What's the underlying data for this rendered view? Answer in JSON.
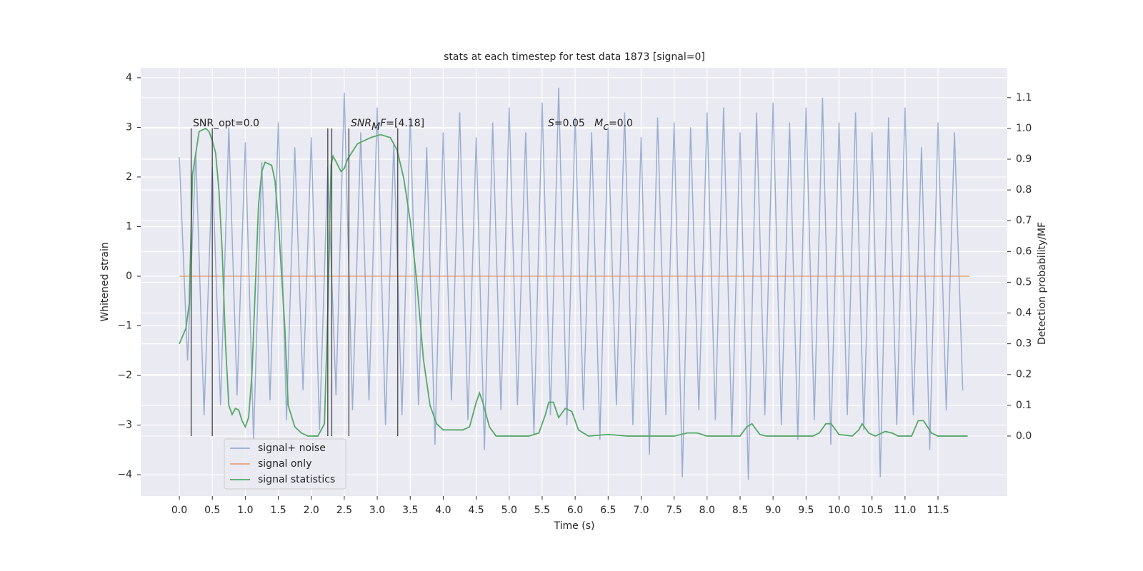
{
  "chart_data": {
    "type": "line",
    "title": "stats at each timestep for test data 1873 [signal=0]",
    "xlabel": "Time (s)",
    "ylabel": "Whitened strain",
    "y2label": "Detection probability/MF",
    "xlim": [
      -0.585,
      12.55
    ],
    "ylim": [
      -4.43,
      4.2
    ],
    "y2lim": [
      -0.195,
      1.197
    ],
    "grid": true,
    "legend_loc": "lower left",
    "xticks": [
      {
        "value": 0,
        "label": "0.0"
      },
      {
        "value": 0.5,
        "label": "0.5"
      },
      {
        "value": 1,
        "label": "1.0"
      },
      {
        "value": 1.5,
        "label": "1.5"
      },
      {
        "value": 2,
        "label": "2.0"
      },
      {
        "value": 2.5,
        "label": "2.5"
      },
      {
        "value": 3,
        "label": "3.0"
      },
      {
        "value": 3.5,
        "label": "3.5"
      },
      {
        "value": 4,
        "label": "4.0"
      },
      {
        "value": 4.5,
        "label": "4.5"
      },
      {
        "value": 5,
        "label": "5.0"
      },
      {
        "value": 5.5,
        "label": "5.5"
      },
      {
        "value": 6,
        "label": "6.0"
      },
      {
        "value": 6.5,
        "label": "6.5"
      },
      {
        "value": 7,
        "label": "7.0"
      },
      {
        "value": 7.5,
        "label": "7.5"
      },
      {
        "value": 8,
        "label": "8.0"
      },
      {
        "value": 8.5,
        "label": "8.5"
      },
      {
        "value": 9,
        "label": "9.0"
      },
      {
        "value": 9.5,
        "label": "9.5"
      },
      {
        "value": 10,
        "label": "10.0"
      },
      {
        "value": 10.5,
        "label": "10.5"
      },
      {
        "value": 11,
        "label": "11.0"
      },
      {
        "value": 11.5,
        "label": "11.5"
      }
    ],
    "yticks": [
      {
        "value": -4,
        "label": "−4"
      },
      {
        "value": -3,
        "label": "−3"
      },
      {
        "value": -2,
        "label": "−2"
      },
      {
        "value": -1,
        "label": "−1"
      },
      0,
      1,
      2,
      3,
      4
    ],
    "y2ticks": [
      {
        "value": 0,
        "label": "0.0"
      },
      {
        "value": 0.1,
        "label": "0.1"
      },
      {
        "value": 0.2,
        "label": "0.2"
      },
      {
        "value": 0.3,
        "label": "0.3"
      },
      {
        "value": 0.4,
        "label": "0.4"
      },
      {
        "value": 0.5,
        "label": "0.5"
      },
      {
        "value": 0.6,
        "label": "0.6"
      },
      {
        "value": 0.7,
        "label": "0.7"
      },
      {
        "value": 0.8,
        "label": "0.8"
      },
      {
        "value": 0.9,
        "label": "0.9"
      },
      {
        "value": 1,
        "label": "1.0"
      },
      {
        "value": 1.1,
        "label": "1.1"
      }
    ],
    "series": [
      {
        "name": "signal+ noise",
        "color": "#4c72b0",
        "opacity": 0.5,
        "x": [
          0,
          0.125,
          0.25,
          0.375,
          0.5,
          0.625,
          0.75,
          0.875,
          1,
          1.125,
          1.25,
          1.375,
          1.5,
          1.625,
          1.75,
          1.875,
          2,
          2.125,
          2.25,
          2.375,
          2.5,
          2.625,
          2.75,
          2.875,
          3,
          3.125,
          3.25,
          3.375,
          3.5,
          3.625,
          3.75,
          3.875,
          4,
          4.125,
          4.25,
          4.375,
          4.5,
          4.625,
          4.75,
          4.875,
          5,
          5.125,
          5.25,
          5.375,
          5.5,
          5.625,
          5.75,
          5.875,
          6,
          6.125,
          6.25,
          6.375,
          6.5,
          6.625,
          6.75,
          6.875,
          7,
          7.125,
          7.25,
          7.375,
          7.5,
          7.625,
          7.75,
          7.875,
          8,
          8.125,
          8.25,
          8.375,
          8.5,
          8.625,
          8.75,
          8.875,
          9,
          9.125,
          9.25,
          9.375,
          9.5,
          9.625,
          9.75,
          9.875,
          10,
          10.125,
          10.25,
          10.375,
          10.5,
          10.625,
          10.75,
          10.875,
          11,
          11.125,
          11.25,
          11.375,
          11.5,
          11.625,
          11.75,
          11.875
        ],
        "values": [
          2.4,
          -1.7,
          2.5,
          -2.8,
          2.2,
          -2.6,
          3.0,
          -2.4,
          2.7,
          -3.3,
          2.3,
          -2.5,
          3.1,
          -2.9,
          2.6,
          -2.3,
          2.8,
          -3.1,
          2.2,
          -2.4,
          3.7,
          -2.7,
          2.9,
          -2.5,
          3.4,
          -3.0,
          2.7,
          -2.8,
          3.2,
          -2.6,
          2.6,
          -3.4,
          2.9,
          -2.5,
          3.3,
          -2.9,
          2.8,
          -3.5,
          3.1,
          -2.7,
          3.4,
          -2.6,
          2.9,
          -3.2,
          3.5,
          -2.8,
          3.8,
          -3.0,
          3.2,
          -2.7,
          2.9,
          -3.3,
          3.0,
          -2.6,
          3.3,
          -3.0,
          2.8,
          -3.6,
          3.2,
          -2.8,
          3.1,
          -4.05,
          3.0,
          -2.7,
          3.3,
          -2.9,
          3.4,
          -3.2,
          2.9,
          -4.1,
          3.3,
          -2.8,
          3.5,
          -3.0,
          3.1,
          -3.3,
          3.4,
          -2.9,
          3.6,
          -3.4,
          3.1,
          -2.8,
          3.3,
          -3.1,
          2.9,
          -4.05,
          3.2,
          -3.0,
          3.4,
          -2.8,
          2.6,
          -3.5,
          3.1,
          -2.7,
          2.9,
          -2.3
        ]
      },
      {
        "name": "signal only",
        "color": "#dd8452",
        "opacity": 0.7,
        "x": [
          0,
          11.98
        ],
        "values": [
          0,
          0
        ]
      },
      {
        "name": "signal statistics",
        "color": "#55a868",
        "opacity": 1,
        "axis": "y2",
        "x": [
          0,
          0.1,
          0.15,
          0.2,
          0.3,
          0.4,
          0.45,
          0.5,
          0.55,
          0.6,
          0.65,
          0.7,
          0.75,
          0.8,
          0.85,
          0.9,
          0.95,
          1.0,
          1.05,
          1.1,
          1.2,
          1.25,
          1.3,
          1.4,
          1.45,
          1.5,
          1.6,
          1.65,
          1.75,
          1.85,
          1.95,
          2.1,
          2.2,
          2.25,
          2.3,
          2.33,
          2.38,
          2.45,
          2.5,
          2.55,
          2.7,
          2.9,
          3.05,
          3.2,
          3.3,
          3.4,
          3.5,
          3.6,
          3.7,
          3.8,
          3.9,
          4.0,
          4.3,
          4.4,
          4.5,
          4.55,
          4.6,
          4.7,
          4.8,
          5.3,
          5.45,
          5.55,
          5.6,
          5.67,
          5.75,
          5.85,
          5.95,
          6.05,
          6.2,
          6.5,
          6.8,
          7.3,
          7.5,
          7.7,
          7.85,
          8.0,
          8.5,
          8.6,
          8.68,
          8.8,
          8.9,
          9.6,
          9.7,
          9.8,
          9.88,
          10.0,
          10.2,
          10.3,
          10.35,
          10.45,
          10.55,
          10.7,
          10.8,
          10.9,
          11.1,
          11.2,
          11.28,
          11.4,
          11.5,
          11.95
        ],
        "values": [
          0.3,
          0.35,
          0.43,
          0.85,
          0.99,
          1.0,
          0.99,
          0.96,
          0.92,
          0.8,
          0.6,
          0.3,
          0.1,
          0.07,
          0.09,
          0.085,
          0.05,
          0.03,
          0.06,
          0.2,
          0.75,
          0.86,
          0.89,
          0.88,
          0.83,
          0.7,
          0.35,
          0.1,
          0.03,
          0.01,
          0.0,
          0.0,
          0.04,
          0.4,
          0.88,
          0.91,
          0.89,
          0.86,
          0.87,
          0.9,
          0.95,
          0.97,
          0.98,
          0.97,
          0.93,
          0.84,
          0.7,
          0.5,
          0.25,
          0.1,
          0.04,
          0.02,
          0.02,
          0.03,
          0.11,
          0.14,
          0.11,
          0.03,
          0.0,
          0.0,
          0.01,
          0.07,
          0.11,
          0.11,
          0.06,
          0.09,
          0.08,
          0.02,
          0.0,
          0.005,
          0.0,
          0.0,
          0.0,
          0.01,
          0.01,
          0.0,
          0.0,
          0.03,
          0.04,
          0.005,
          0.0,
          0.0,
          0.01,
          0.04,
          0.04,
          0.005,
          0.0,
          0.02,
          0.04,
          0.01,
          0.0,
          0.015,
          0.01,
          0.0,
          0.0,
          0.05,
          0.05,
          0.01,
          0.0,
          0.0
        ]
      }
    ],
    "vlines": {
      "color": "#333333",
      "x": [
        0.18,
        0.5,
        2.25,
        2.31,
        2.57,
        3.31
      ],
      "from": 0,
      "to": 1
    },
    "annotations": [
      {
        "parts": [
          {
            "t": "SNR_opt=0.0"
          }
        ]
      },
      {
        "parts": [
          {
            "t": "SNR",
            "i": true
          },
          {
            "t": "M",
            "i": true,
            "sub": true
          },
          {
            "t": "F",
            "i": true
          },
          {
            "t": "=[4.18]"
          }
        ]
      },
      {
        "parts": [
          {
            "t": "S",
            "i": true
          },
          {
            "t": "=0.05   "
          },
          {
            "t": "M",
            "i": true
          },
          {
            "t": "c",
            "i": true,
            "sub": true
          },
          {
            "t": "=0.0"
          }
        ]
      }
    ]
  }
}
